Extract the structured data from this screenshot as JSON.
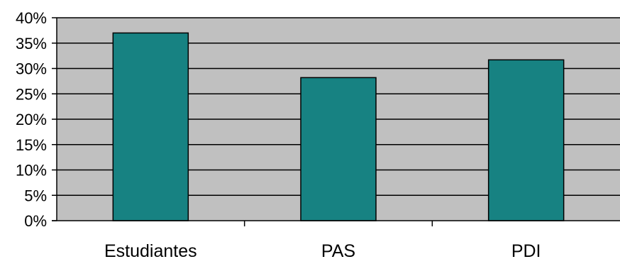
{
  "chart_data": {
    "type": "bar",
    "categories": [
      "Estudiantes",
      "PAS",
      "PDI"
    ],
    "values": [
      37,
      28.2,
      31.7
    ],
    "unit": "%",
    "ylim": [
      0,
      40
    ],
    "yticks": [
      0,
      5,
      10,
      15,
      20,
      25,
      30,
      35,
      40
    ],
    "ytick_labels": [
      "0%",
      "5%",
      "10%",
      "15%",
      "20%",
      "25%",
      "30%",
      "35%",
      "40%"
    ],
    "title": "",
    "xlabel": "",
    "ylabel": "",
    "grid": true,
    "legend": "none",
    "colors": {
      "plot_background": "#c0c0c0",
      "bar_fill": "#178282",
      "bar_stroke": "#000000",
      "grid": "#000000"
    }
  }
}
